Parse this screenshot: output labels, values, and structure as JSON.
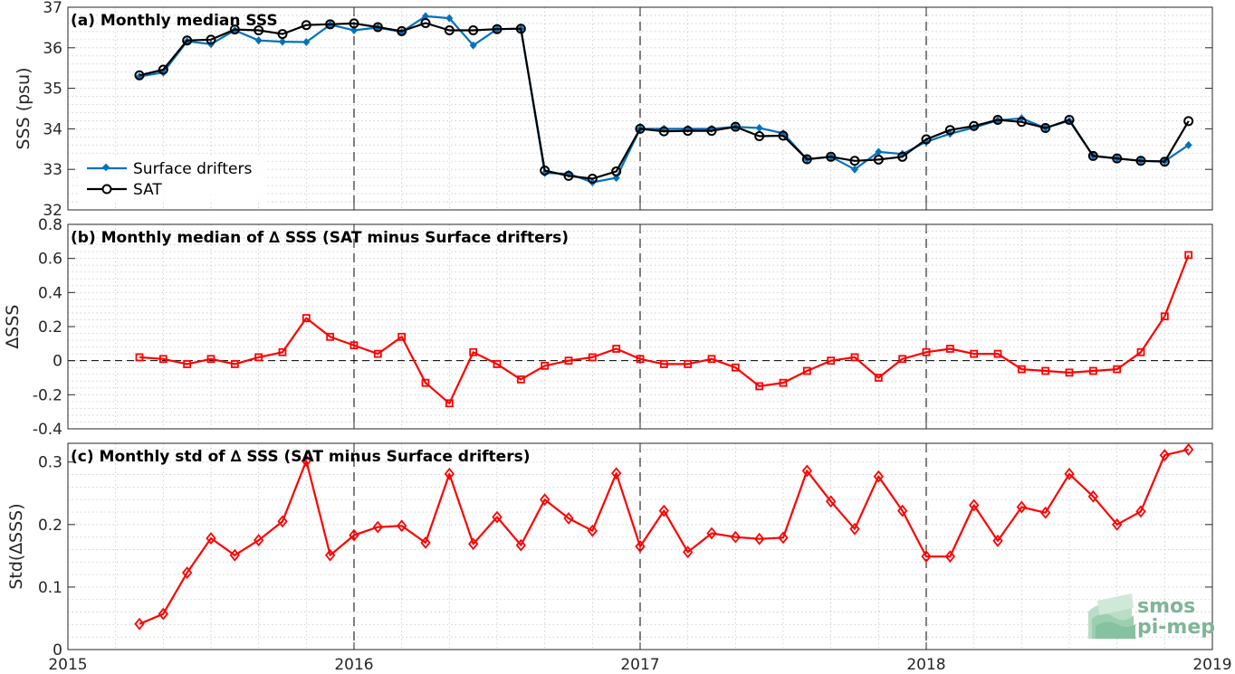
{
  "x_ticks": [
    "2015",
    "2016",
    "2017",
    "2018",
    "2019"
  ],
  "legend": {
    "drifters_label": "Surface drifters",
    "sat_label": "SAT"
  },
  "logo": {
    "line1": "smos",
    "line2": "pi-mep"
  },
  "colors": {
    "drifters": "#0072bd",
    "sat": "#000000",
    "delta": "#ff0000",
    "grid": "#c8c8c8"
  },
  "chart_data": [
    {
      "type": "line",
      "title": "(a) Monthly median SSS",
      "ylabel": "SSS (psu)",
      "ylim": [
        32,
        37
      ],
      "yticks": [
        32,
        33,
        34,
        35,
        36,
        37
      ],
      "xlim": [
        "2015-01",
        "2019-01"
      ],
      "x": [
        "2015-04",
        "2015-05",
        "2015-06",
        "2015-07",
        "2015-08",
        "2015-09",
        "2015-10",
        "2015-11",
        "2015-12",
        "2016-01",
        "2016-02",
        "2016-03",
        "2016-04",
        "2016-05",
        "2016-06",
        "2016-07",
        "2016-08",
        "2016-09",
        "2016-10",
        "2016-11",
        "2016-12",
        "2017-01",
        "2017-02",
        "2017-03",
        "2017-04",
        "2017-05",
        "2017-06",
        "2017-07",
        "2017-08",
        "2017-09",
        "2017-10",
        "2017-11",
        "2017-12",
        "2018-01",
        "2018-02",
        "2018-03",
        "2018-04",
        "2018-05",
        "2018-06",
        "2018-07",
        "2018-08",
        "2018-09",
        "2018-10",
        "2018-11",
        "2018-12"
      ],
      "series": [
        {
          "name": "Surface drifters",
          "marker": "filled-diamond",
          "values": [
            35.29,
            35.39,
            36.16,
            36.09,
            36.43,
            36.18,
            36.15,
            36.14,
            36.57,
            36.43,
            36.5,
            36.39,
            36.78,
            36.73,
            36.06,
            36.46,
            36.47,
            32.91,
            32.89,
            32.68,
            32.79,
            34.0,
            34.0,
            34.0,
            34.0,
            34.05,
            34.02,
            33.89,
            33.25,
            33.31,
            33.0,
            33.43,
            33.38,
            33.68,
            33.88,
            34.03,
            34.21,
            34.26,
            34.02,
            34.2,
            33.33,
            33.27,
            33.21,
            33.2,
            33.6
          ]
        },
        {
          "name": "SAT",
          "marker": "open-circle",
          "values": [
            35.32,
            35.46,
            36.18,
            36.2,
            36.45,
            36.43,
            36.34,
            36.56,
            36.58,
            36.6,
            36.51,
            36.41,
            36.61,
            36.43,
            36.43,
            36.46,
            36.47,
            32.97,
            32.84,
            32.77,
            32.95,
            34.0,
            33.94,
            33.95,
            33.95,
            34.05,
            33.82,
            33.83,
            33.25,
            33.31,
            33.21,
            33.24,
            33.31,
            33.74,
            33.97,
            34.07,
            34.22,
            34.17,
            34.02,
            34.22,
            33.33,
            33.27,
            33.21,
            33.19,
            34.19
          ]
        }
      ]
    },
    {
      "type": "line",
      "title": "(b) Monthly median of ∆ SSS (SAT minus Surface drifters)",
      "ylabel": "∆SSS",
      "ylim": [
        -0.4,
        0.8
      ],
      "yticks": [
        -0.4,
        -0.2,
        0,
        0.2,
        0.4,
        0.6,
        0.8
      ],
      "ytick_labels": [
        "-0.4",
        "-0.2",
        "0",
        "0.2",
        "0.4",
        "0.6",
        "0.8"
      ],
      "xlim": [
        "2015-01",
        "2019-01"
      ],
      "reference_line": 0,
      "x": [
        "2015-04",
        "2015-05",
        "2015-06",
        "2015-07",
        "2015-08",
        "2015-09",
        "2015-10",
        "2015-11",
        "2015-12",
        "2016-01",
        "2016-02",
        "2016-03",
        "2016-04",
        "2016-05",
        "2016-06",
        "2016-07",
        "2016-08",
        "2016-09",
        "2016-10",
        "2016-11",
        "2016-12",
        "2017-01",
        "2017-02",
        "2017-03",
        "2017-04",
        "2017-05",
        "2017-06",
        "2017-07",
        "2017-08",
        "2017-09",
        "2017-10",
        "2017-11",
        "2017-12",
        "2018-01",
        "2018-02",
        "2018-03",
        "2018-04",
        "2018-05",
        "2018-06",
        "2018-07",
        "2018-08",
        "2018-09",
        "2018-10",
        "2018-11",
        "2018-12"
      ],
      "series": [
        {
          "marker": "open-square",
          "values": [
            0.02,
            0.01,
            -0.02,
            0.01,
            -0.02,
            0.02,
            0.05,
            0.25,
            0.14,
            0.09,
            0.04,
            0.14,
            -0.13,
            -0.25,
            0.05,
            -0.02,
            -0.11,
            -0.03,
            0.0,
            0.02,
            0.07,
            0.01,
            -0.02,
            -0.02,
            0.01,
            -0.04,
            -0.15,
            -0.13,
            -0.06,
            0.0,
            0.02,
            -0.1,
            0.01,
            0.05,
            0.07,
            0.04,
            0.04,
            -0.05,
            -0.06,
            -0.07,
            -0.06,
            -0.05,
            0.05,
            0.26,
            0.62
          ]
        }
      ]
    },
    {
      "type": "line",
      "title": "(c) Monthly std of ∆ SSS (SAT minus Surface drifters)",
      "ylabel": "Std(∆SSS)",
      "ylim": [
        0,
        0.33
      ],
      "yticks": [
        0,
        0.1,
        0.2,
        0.3
      ],
      "ytick_labels": [
        "0",
        "0.1",
        "0.2",
        "0.3"
      ],
      "xlim": [
        "2015-01",
        "2019-01"
      ],
      "x": [
        "2015-04",
        "2015-05",
        "2015-06",
        "2015-07",
        "2015-08",
        "2015-09",
        "2015-10",
        "2015-11",
        "2015-12",
        "2016-01",
        "2016-02",
        "2016-03",
        "2016-04",
        "2016-05",
        "2016-06",
        "2016-07",
        "2016-08",
        "2016-09",
        "2016-10",
        "2016-11",
        "2016-12",
        "2017-01",
        "2017-02",
        "2017-03",
        "2017-04",
        "2017-05",
        "2017-06",
        "2017-07",
        "2017-08",
        "2017-09",
        "2017-10",
        "2017-11",
        "2017-12",
        "2018-01",
        "2018-02",
        "2018-03",
        "2018-04",
        "2018-05",
        "2018-06",
        "2018-07",
        "2018-08",
        "2018-09",
        "2018-10",
        "2018-11",
        "2018-12"
      ],
      "series": [
        {
          "marker": "open-diamond",
          "values": [
            0.041,
            0.057,
            0.123,
            0.178,
            0.151,
            0.175,
            0.205,
            0.302,
            0.151,
            0.183,
            0.196,
            0.198,
            0.171,
            0.281,
            0.169,
            0.212,
            0.167,
            0.24,
            0.21,
            0.19,
            0.282,
            0.165,
            0.222,
            0.156,
            0.186,
            0.18,
            0.177,
            0.179,
            0.286,
            0.237,
            0.193,
            0.277,
            0.222,
            0.149,
            0.149,
            0.231,
            0.174,
            0.228,
            0.219,
            0.281,
            0.245,
            0.2,
            0.221,
            0.311,
            0.32
          ]
        }
      ]
    }
  ]
}
